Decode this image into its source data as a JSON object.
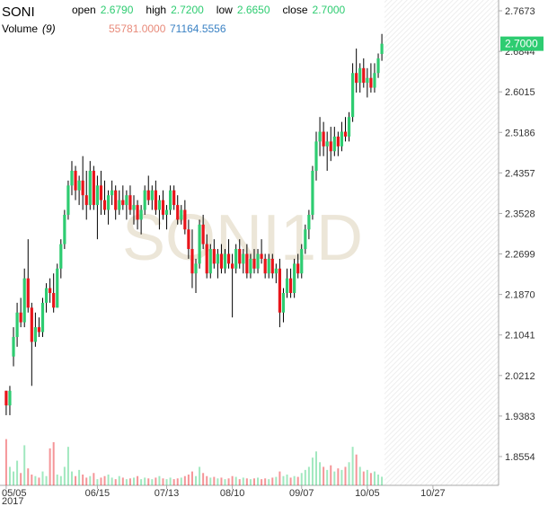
{
  "chart_data": {
    "type": "candlestick",
    "title": "SONI",
    "header": [
      {
        "name": "open",
        "value": 2.679,
        "value_label": "2.6790"
      },
      {
        "name": "high",
        "value": 2.72,
        "value_label": "2.7200"
      },
      {
        "name": "low",
        "value": 2.665,
        "value_label": "2.6650"
      },
      {
        "name": "close",
        "value": 2.7,
        "value_label": "2.7000"
      }
    ],
    "volume_label": "Volume",
    "volume_period": "(9)",
    "volume_value": {
      "value": 55781,
      "label": "55781.0000"
    },
    "volume_ma": {
      "value": 71164.5556,
      "label": "71164.5556"
    },
    "last_price": {
      "value": 2.7,
      "label": "2.7000"
    },
    "watermark": "SONI1D",
    "year": "2017",
    "up_color": "#2ecc71",
    "down_color": "#e8141a",
    "ylim": [
      1.7965,
      2.7894
    ],
    "yticks": [
      2.7673,
      2.6844,
      2.6015,
      2.5186,
      2.4357,
      2.3528,
      2.2699,
      {
        "value": 2.187,
        "label": "2.1870"
      },
      2.1041,
      2.0212,
      1.9383,
      1.8554
    ],
    "xlim": [
      -1.7,
      135
    ],
    "xticks": [
      {
        "value": 0,
        "label": "05/05"
      },
      {
        "value": 25,
        "label": "06/15"
      },
      {
        "value": 44,
        "label": "07/13"
      },
      {
        "value": 62,
        "label": "08/10"
      },
      {
        "value": 81,
        "label": "09/07"
      },
      {
        "value": 99,
        "label": "10/05"
      },
      {
        "value": 117,
        "label": "10/27"
      }
    ],
    "volume_lim": [
      0,
      350000
    ],
    "ohlc": [
      [
        1.99,
        1.99,
        1.94,
        1.96
      ],
      [
        1.96,
        2.0,
        1.94,
        1.99
      ],
      [
        2.06,
        2.12,
        2.04,
        2.1
      ],
      [
        2.1,
        2.17,
        2.08,
        2.15
      ],
      [
        2.15,
        2.18,
        2.12,
        2.13
      ],
      [
        2.13,
        2.24,
        2.12,
        2.22
      ],
      [
        2.22,
        2.3,
        2.15,
        2.16
      ],
      [
        2.16,
        2.17,
        2.0,
        2.09
      ],
      [
        2.09,
        2.15,
        2.08,
        2.12
      ],
      [
        2.12,
        2.14,
        2.1,
        2.11
      ],
      [
        2.11,
        2.18,
        2.1,
        2.17
      ],
      [
        2.17,
        2.21,
        2.15,
        2.2
      ],
      [
        2.2,
        2.22,
        2.17,
        2.19
      ],
      [
        2.19,
        2.23,
        2.15,
        2.16
      ],
      [
        2.16,
        2.25,
        2.16,
        2.24
      ],
      [
        2.24,
        2.3,
        2.22,
        2.29
      ],
      [
        2.29,
        2.36,
        2.28,
        2.35
      ],
      [
        2.35,
        2.42,
        2.34,
        2.41
      ],
      [
        2.41,
        2.46,
        2.39,
        2.44
      ],
      [
        2.44,
        2.45,
        2.38,
        2.4
      ],
      [
        2.4,
        2.43,
        2.37,
        2.42
      ],
      [
        2.42,
        2.47,
        2.36,
        2.39
      ],
      [
        2.39,
        2.44,
        2.34,
        2.37
      ],
      [
        2.37,
        2.46,
        2.36,
        2.44
      ],
      [
        2.44,
        2.45,
        2.36,
        2.37
      ],
      [
        2.37,
        2.43,
        2.3,
        2.41
      ],
      [
        2.41,
        2.44,
        2.35,
        2.38
      ],
      [
        2.38,
        2.42,
        2.35,
        2.36
      ],
      [
        2.36,
        2.4,
        2.33,
        2.39
      ],
      [
        2.39,
        2.42,
        2.37,
        2.4
      ],
      [
        2.4,
        2.41,
        2.34,
        2.36
      ],
      [
        2.36,
        2.4,
        2.35,
        2.38
      ],
      [
        2.38,
        2.41,
        2.36,
        2.37
      ],
      [
        2.37,
        2.4,
        2.34,
        2.39
      ],
      [
        2.39,
        2.41,
        2.35,
        2.36
      ],
      [
        2.36,
        2.39,
        2.33,
        2.37
      ],
      [
        2.37,
        2.38,
        2.32,
        2.34
      ],
      [
        2.34,
        2.37,
        2.31,
        2.36
      ],
      [
        2.36,
        2.41,
        2.35,
        2.4
      ],
      [
        2.4,
        2.43,
        2.37,
        2.38
      ],
      [
        2.38,
        2.41,
        2.36,
        2.4
      ],
      [
        2.4,
        2.42,
        2.35,
        2.36
      ],
      [
        2.36,
        2.39,
        2.32,
        2.38
      ],
      [
        2.38,
        2.4,
        2.34,
        2.35
      ],
      [
        2.35,
        2.37,
        2.32,
        2.36
      ],
      [
        2.36,
        2.41,
        2.35,
        2.4
      ],
      [
        2.4,
        2.41,
        2.36,
        2.37
      ],
      [
        2.37,
        2.39,
        2.33,
        2.34
      ],
      [
        2.34,
        2.37,
        2.33,
        2.36
      ],
      [
        2.36,
        2.38,
        2.31,
        2.32
      ],
      [
        2.32,
        2.34,
        2.26,
        2.28
      ],
      [
        2.28,
        2.32,
        2.2,
        2.23
      ],
      [
        2.23,
        2.26,
        2.19,
        2.25
      ],
      [
        2.25,
        2.34,
        2.24,
        2.33
      ],
      [
        2.33,
        2.35,
        2.28,
        2.29
      ],
      [
        2.29,
        2.31,
        2.22,
        2.23
      ],
      [
        2.23,
        2.29,
        2.22,
        2.28
      ],
      [
        2.28,
        2.3,
        2.24,
        2.25
      ],
      [
        2.25,
        2.28,
        2.22,
        2.27
      ],
      [
        2.27,
        2.29,
        2.23,
        2.24
      ],
      [
        2.24,
        2.28,
        2.23,
        2.27
      ],
      [
        2.27,
        2.3,
        2.24,
        2.25
      ],
      [
        2.25,
        2.27,
        2.14,
        2.24
      ],
      [
        2.24,
        2.29,
        2.23,
        2.28
      ],
      [
        2.28,
        2.3,
        2.24,
        2.25
      ],
      [
        2.25,
        2.28,
        2.23,
        2.27
      ],
      [
        2.27,
        2.29,
        2.22,
        2.23
      ],
      [
        2.23,
        2.27,
        2.22,
        2.26
      ],
      [
        2.26,
        2.28,
        2.23,
        2.24
      ],
      [
        2.24,
        2.28,
        2.23,
        2.27
      ],
      [
        2.27,
        2.3,
        2.25,
        2.26
      ],
      [
        2.26,
        2.27,
        2.22,
        2.23
      ],
      [
        2.23,
        2.27,
        2.22,
        2.26
      ],
      [
        2.26,
        2.27,
        2.22,
        2.23
      ],
      [
        2.23,
        2.25,
        2.21,
        2.24
      ],
      [
        2.24,
        2.26,
        2.12,
        2.15
      ],
      [
        2.15,
        2.2,
        2.13,
        2.19
      ],
      [
        2.19,
        2.24,
        2.18,
        2.22
      ],
      [
        2.22,
        2.24,
        2.18,
        2.19
      ],
      [
        2.19,
        2.26,
        2.18,
        2.25
      ],
      [
        2.25,
        2.27,
        2.22,
        2.23
      ],
      [
        2.23,
        2.29,
        2.22,
        2.28
      ],
      [
        2.28,
        2.33,
        2.27,
        2.32
      ],
      [
        2.32,
        2.36,
        2.3,
        2.35
      ],
      [
        2.35,
        2.45,
        2.34,
        2.44
      ],
      [
        2.44,
        2.52,
        2.42,
        2.5
      ],
      [
        2.5,
        2.55,
        2.47,
        2.52
      ],
      [
        2.52,
        2.54,
        2.47,
        2.49
      ],
      [
        2.49,
        2.52,
        2.44,
        2.5
      ],
      [
        2.5,
        2.53,
        2.46,
        2.48
      ],
      [
        2.48,
        2.53,
        2.47,
        2.51
      ],
      [
        2.51,
        2.52,
        2.47,
        2.49
      ],
      [
        2.49,
        2.54,
        2.48,
        2.52
      ],
      [
        2.52,
        2.55,
        2.5,
        2.51
      ],
      [
        2.51,
        2.56,
        2.5,
        2.55
      ],
      [
        2.55,
        2.66,
        2.54,
        2.64
      ],
      [
        2.64,
        2.69,
        2.6,
        2.62
      ],
      [
        2.62,
        2.66,
        2.6,
        2.65
      ],
      [
        2.65,
        2.67,
        2.61,
        2.62
      ],
      [
        2.62,
        2.65,
        2.59,
        2.63
      ],
      [
        2.63,
        2.66,
        2.6,
        2.61
      ],
      [
        2.61,
        2.66,
        2.6,
        2.64
      ],
      [
        2.64,
        2.68,
        2.63,
        2.67
      ],
      [
        2.679,
        2.72,
        2.665,
        2.7
      ]
    ],
    "volume": [
      300000,
      120000,
      90000,
      160000,
      80000,
      260000,
      110000,
      70000,
      60000,
      50000,
      90000,
      60000,
      240000,
      280000,
      70000,
      60000,
      120000,
      250000,
      90000,
      60000,
      100000,
      70000,
      50000,
      60000,
      80000,
      40000,
      50000,
      60000,
      70000,
      50000,
      40000,
      60000,
      50000,
      40000,
      45000,
      50000,
      60000,
      40000,
      50000,
      45000,
      40000,
      50000,
      60000,
      45000,
      40000,
      50000,
      40000,
      45000,
      50000,
      60000,
      70000,
      90000,
      60000,
      120000,
      80000,
      60000,
      50000,
      55000,
      45000,
      50000,
      40000,
      45000,
      60000,
      55000,
      40000,
      50000,
      45000,
      40000,
      45000,
      50000,
      40000,
      45000,
      40000,
      50000,
      55000,
      90000,
      60000,
      70000,
      50000,
      60000,
      55000,
      80000,
      100000,
      120000,
      180000,
      220000,
      150000,
      120000,
      100000,
      130000,
      90000,
      110000,
      100000,
      120000,
      150000,
      250000,
      200000,
      120000,
      90000,
      100000,
      80000,
      90000,
      70000,
      55781
    ]
  }
}
